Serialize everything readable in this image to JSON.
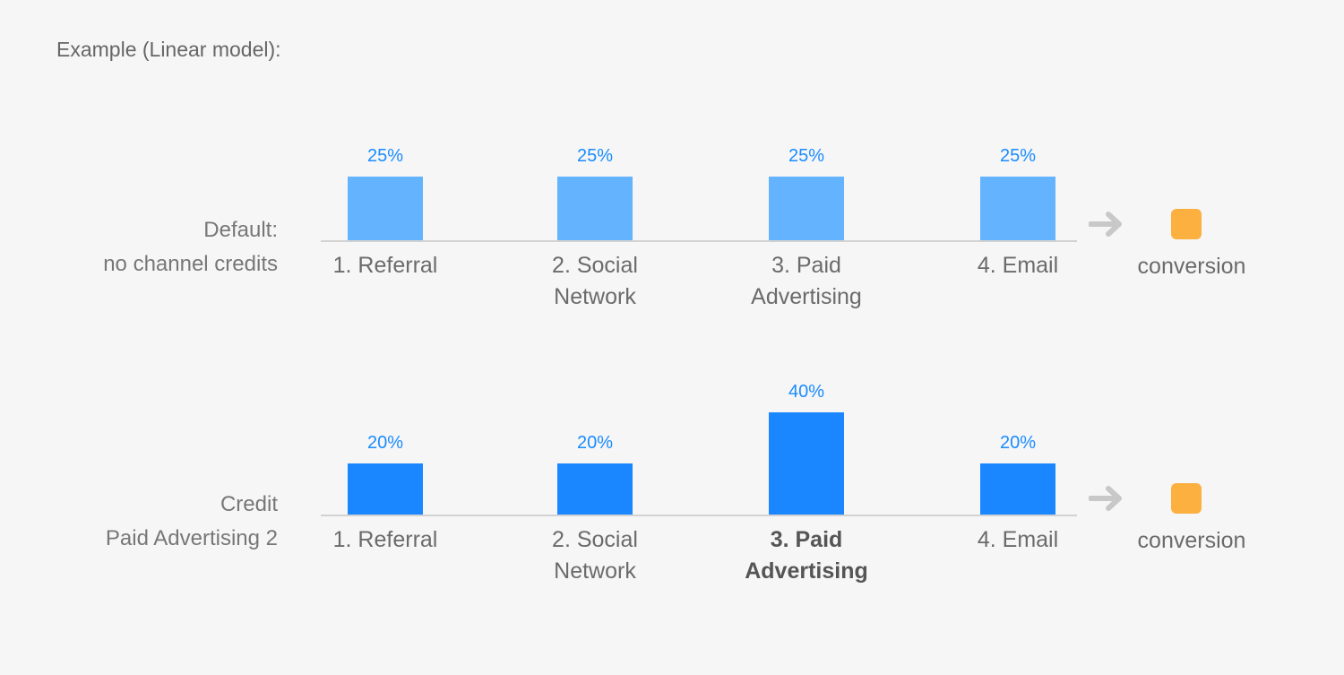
{
  "title": "Example (Linear model):",
  "conversion_label": "conversion",
  "colors": {
    "default_bar": "#63b3ff",
    "credit_bar": "#1a86ff",
    "percent_text": "#1a8cff",
    "conversion": "#fbb040",
    "arrow": "#c8c8c8"
  },
  "icons": {
    "arrow": "arrow-right-icon",
    "conversion": "conversion-square-icon"
  },
  "chart_data": [
    {
      "type": "bar",
      "row_label": [
        "Default:",
        "no channel credits"
      ],
      "categories": [
        [
          "1. Referral"
        ],
        [
          "2. Social",
          "Network"
        ],
        [
          "3. Paid",
          "Advertising"
        ],
        [
          "4. Email"
        ]
      ],
      "values": [
        25,
        25,
        25,
        25
      ],
      "data_labels": [
        "25%",
        "25%",
        "25%",
        "25%"
      ],
      "highlight_index": -1,
      "bar_color": "#63b3ff"
    },
    {
      "type": "bar",
      "row_label": [
        "Credit",
        "Paid Advertising 2"
      ],
      "categories": [
        [
          "1. Referral"
        ],
        [
          "2. Social",
          "Network"
        ],
        [
          "3. Paid",
          "Advertising"
        ],
        [
          "4. Email"
        ]
      ],
      "values": [
        20,
        20,
        40,
        20
      ],
      "data_labels": [
        "20%",
        "20%",
        "40%",
        "20%"
      ],
      "highlight_index": 2,
      "bar_color": "#1a86ff"
    }
  ]
}
